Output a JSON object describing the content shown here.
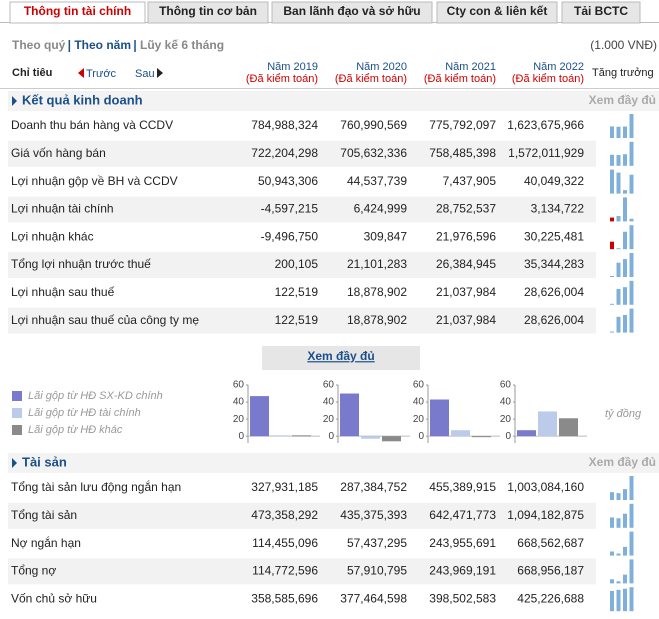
{
  "tabs": [
    "Thông tin tài chính",
    "Thông tin cơ bản",
    "Ban lãnh đạo và sở hữu",
    "Cty con & liên kết",
    "Tải BCTC"
  ],
  "period_options": [
    "Theo quý",
    "Theo năm",
    "Lũy kế 6 tháng"
  ],
  "unit": "(1.000 VNĐ)",
  "header": {
    "label": "Chỉ tiêu",
    "prev": "Trước",
    "next": "Sau",
    "growth": "Tăng trưởng",
    "years": [
      {
        "year": "Năm 2019",
        "note": "(Đã kiểm toán)"
      },
      {
        "year": "Năm 2020",
        "note": "(Đã kiểm toán)"
      },
      {
        "year": "Năm 2021",
        "note": "(Đã kiểm toán)"
      },
      {
        "year": "Năm 2022",
        "note": "(Đã kiểm toán)"
      }
    ]
  },
  "sections": [
    {
      "title": "Kết quả kinh doanh",
      "more": "Xem đầy đủ",
      "rows": [
        {
          "label": "Doanh thu bán hàng và CCDV",
          "values": [
            "784,988,324",
            "760,990,569",
            "775,792,097",
            "1,623,675,966"
          ]
        },
        {
          "label": "Giá vốn hàng bán",
          "values": [
            "722,204,298",
            "705,632,336",
            "758,485,398",
            "1,572,011,929"
          ]
        },
        {
          "label": "Lợi nhuận gộp về BH và CCDV",
          "values": [
            "50,943,306",
            "44,537,739",
            "7,437,905",
            "40,049,322"
          ]
        },
        {
          "label": "Lợi nhuận tài chính",
          "values": [
            "-4,597,215",
            "6,424,999",
            "28,752,537",
            "3,134,722"
          ]
        },
        {
          "label": "Lợi nhuận khác",
          "values": [
            "-9,496,750",
            "309,847",
            "21,976,596",
            "30,225,481"
          ]
        },
        {
          "label": "Tổng lợi nhuận trước thuế",
          "values": [
            "200,105",
            "21,101,283",
            "26,384,945",
            "35,344,283"
          ]
        },
        {
          "label": "Lợi nhuận sau thuế",
          "values": [
            "122,519",
            "18,878,902",
            "21,037,984",
            "28,626,004"
          ]
        },
        {
          "label": "Lợi nhuận sau thuế của công ty mẹ",
          "values": [
            "122,519",
            "18,878,902",
            "21,037,984",
            "28,626,004"
          ]
        }
      ]
    },
    {
      "title": "Tài sản",
      "more": "Xem đầy đủ",
      "rows": [
        {
          "label": "Tổng tài sản lưu động ngắn hạn",
          "values": [
            "327,931,185",
            "287,384,752",
            "455,389,915",
            "1,003,084,160"
          ]
        },
        {
          "label": "Tổng tài sản",
          "values": [
            "473,358,292",
            "435,375,393",
            "642,471,773",
            "1,094,182,875"
          ]
        },
        {
          "label": "Nợ ngắn hạn",
          "values": [
            "114,455,096",
            "57,437,295",
            "243,955,691",
            "668,562,687"
          ]
        },
        {
          "label": "Tổng nợ",
          "values": [
            "114,772,596",
            "57,910,795",
            "243,969,191",
            "668,956,187"
          ]
        },
        {
          "label": "Vốn chủ sở hữu",
          "values": [
            "358,585,696",
            "377,464,598",
            "398,502,583",
            "425,226,688"
          ]
        }
      ]
    }
  ],
  "show_full": "Xem đầy đủ",
  "chart_data": {
    "type": "bar",
    "y_label": "tỷ đồng",
    "series": [
      {
        "name": "Lãi gộp từ HĐ SX-KD chính",
        "color": "#7a7acc",
        "values": [
          47,
          50,
          43,
          7
        ]
      },
      {
        "name": "Lãi gộp từ HĐ tài chính",
        "color": "#bccbea",
        "values": [
          1,
          -3,
          7,
          29
        ]
      },
      {
        "name": "Lãi gộp từ HĐ khác",
        "color": "#8a8a8a",
        "values": [
          1,
          -6,
          0,
          21
        ]
      }
    ],
    "ylim": [
      -8,
      60
    ],
    "yticks": [
      0,
      20,
      40,
      60
    ]
  }
}
